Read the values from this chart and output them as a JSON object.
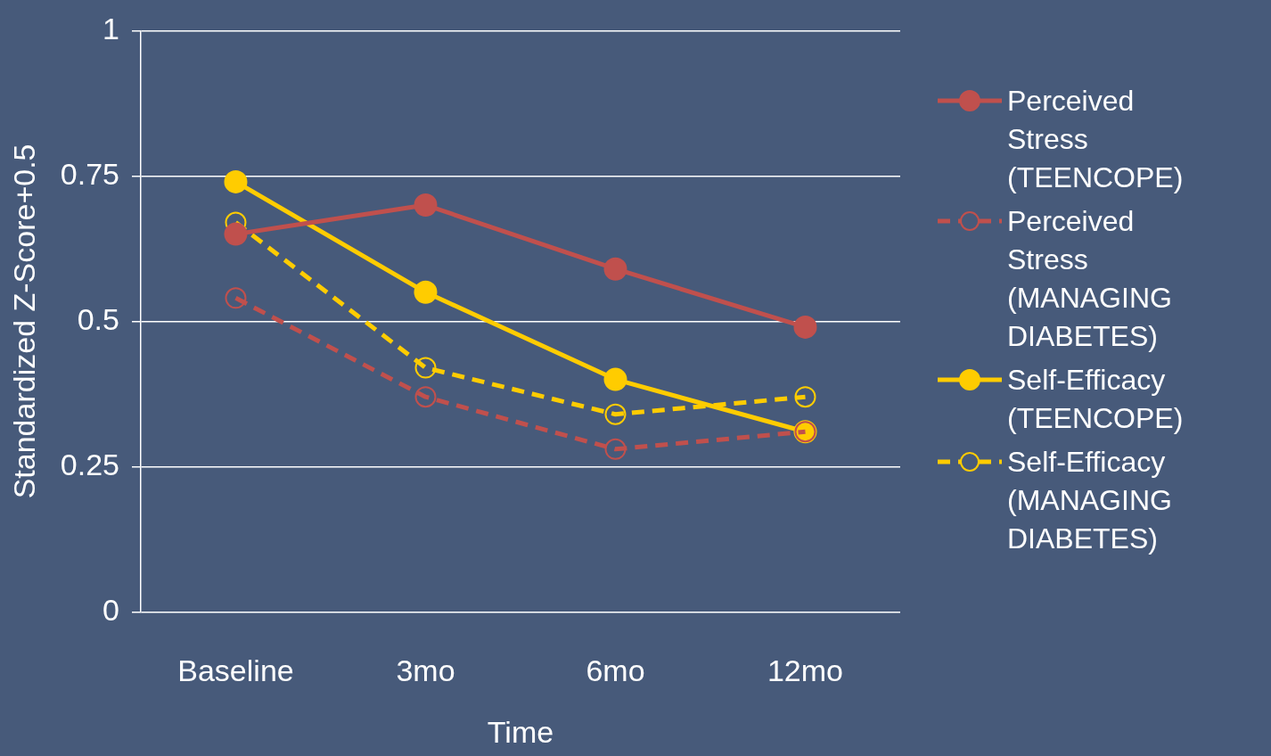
{
  "chart_data": {
    "type": "line",
    "xlabel": "Time",
    "ylabel": "Standardized Z-Score+0.5",
    "categories": [
      "Baseline",
      "3mo",
      "6mo",
      "12mo"
    ],
    "series": [
      {
        "name": "Perceived Stress (TEENCOPE)",
        "color": "#c0504d",
        "values": [
          0.65,
          0.7,
          0.59,
          0.49
        ],
        "line_style": "solid"
      },
      {
        "name": "Perceived Stress (MANAGING DIABETES)",
        "color": "#c0504d",
        "values": [
          0.54,
          0.37,
          0.28,
          0.31
        ],
        "line_style": "dashed"
      },
      {
        "name": "Self-Efficacy (TEENCOPE)",
        "color": "#ffcc00",
        "values": [
          0.74,
          0.55,
          0.4,
          0.31
        ],
        "line_style": "solid"
      },
      {
        "name": "Self-Efficacy (MANAGING DIABETES)",
        "color": "#ffcc00",
        "values": [
          0.67,
          0.42,
          0.34,
          0.37
        ],
        "line_style": "dashed"
      }
    ],
    "ylim": [
      0,
      1
    ],
    "yticks": [
      0,
      0.25,
      0.5,
      0.75,
      1
    ],
    "grid": "y",
    "legend": "right",
    "marker": "circle"
  }
}
